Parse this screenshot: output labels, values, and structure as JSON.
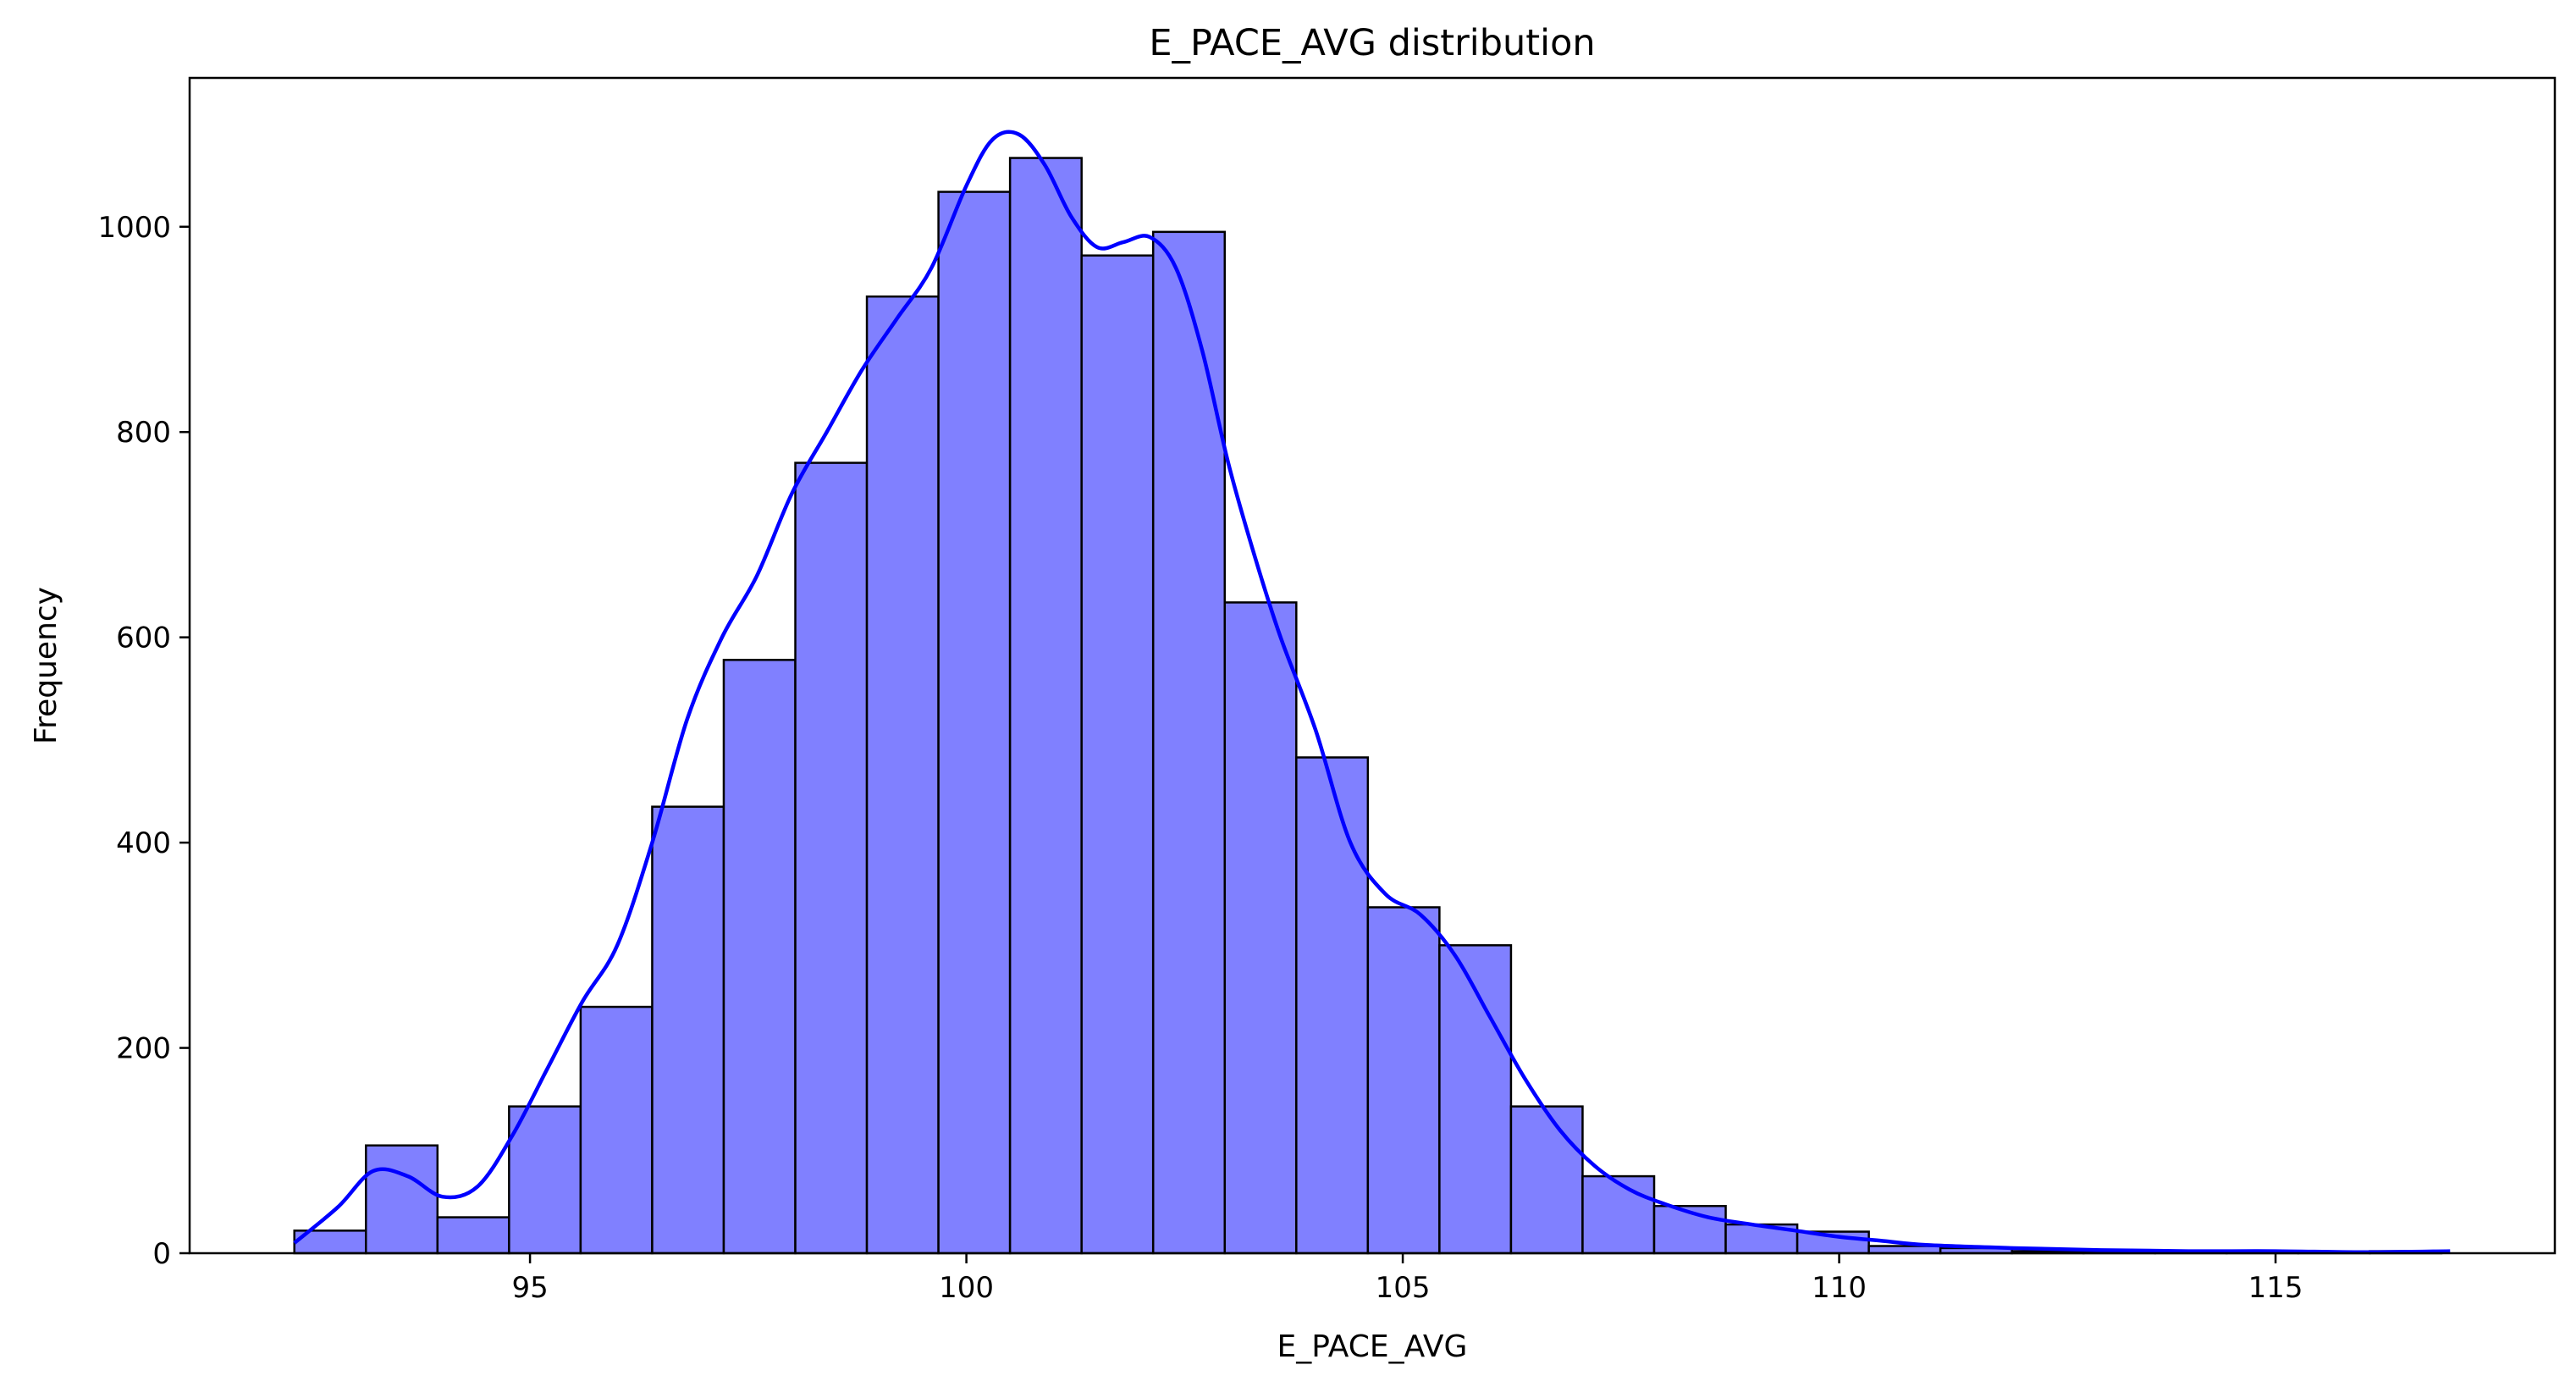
{
  "chart_data": {
    "type": "bar",
    "title": "E_PACE_AVG distribution",
    "xlabel": "E_PACE_AVG",
    "ylabel": "Frequency",
    "xlim": [
      91.1,
      118.2
    ],
    "ylim": [
      0,
      1145
    ],
    "xticks": [
      95,
      100,
      105,
      110,
      115
    ],
    "yticks": [
      0,
      200,
      400,
      600,
      800,
      1000
    ],
    "bin_edges": [
      92.3,
      93.12,
      93.94,
      94.76,
      95.58,
      96.4,
      97.22,
      98.04,
      98.86,
      99.68,
      100.5,
      101.32,
      102.14,
      102.96,
      103.78,
      104.6,
      105.42,
      106.24,
      107.06,
      107.88,
      108.7,
      109.52,
      110.34,
      111.16,
      111.98,
      112.8,
      113.62,
      114.44,
      115.26,
      116.08,
      116.9
    ],
    "values": [
      22,
      105,
      35,
      143,
      240,
      435,
      578,
      770,
      932,
      1034,
      1067,
      972,
      995,
      634,
      483,
      337,
      300,
      143,
      75,
      46,
      28,
      21,
      7,
      5,
      2,
      1,
      2,
      1,
      1,
      2
    ],
    "kde": {
      "x": [
        92.3,
        92.8,
        93.2,
        93.6,
        94.0,
        94.4,
        94.8,
        95.2,
        95.6,
        96.0,
        96.4,
        96.8,
        97.2,
        97.6,
        98.0,
        98.4,
        98.8,
        99.2,
        99.6,
        100.0,
        100.3,
        100.6,
        100.9,
        101.2,
        101.5,
        101.8,
        102.1,
        102.4,
        102.7,
        103.0,
        103.3,
        103.6,
        104.0,
        104.4,
        104.8,
        105.2,
        105.6,
        106.0,
        106.4,
        106.8,
        107.2,
        107.6,
        108.0,
        108.5,
        109.0,
        109.5,
        110.0,
        110.5,
        111.0,
        112.0,
        113.0,
        114.0,
        115.0,
        116.0,
        117.0
      ],
      "y": [
        10,
        45,
        80,
        75,
        55,
        65,
        115,
        180,
        245,
        300,
        400,
        520,
        600,
        660,
        740,
        800,
        860,
        910,
        960,
        1040,
        1085,
        1090,
        1060,
        1010,
        980,
        985,
        990,
        960,
        880,
        770,
        680,
        600,
        510,
        400,
        350,
        330,
        290,
        230,
        170,
        120,
        85,
        62,
        48,
        35,
        28,
        22,
        16,
        12,
        8,
        5,
        3,
        2,
        2,
        1,
        2
      ]
    },
    "bar_color": "#8080ff",
    "bar_edge_color": "#000000",
    "kde_color": "#0000ff",
    "grid": false,
    "legend": "none"
  }
}
